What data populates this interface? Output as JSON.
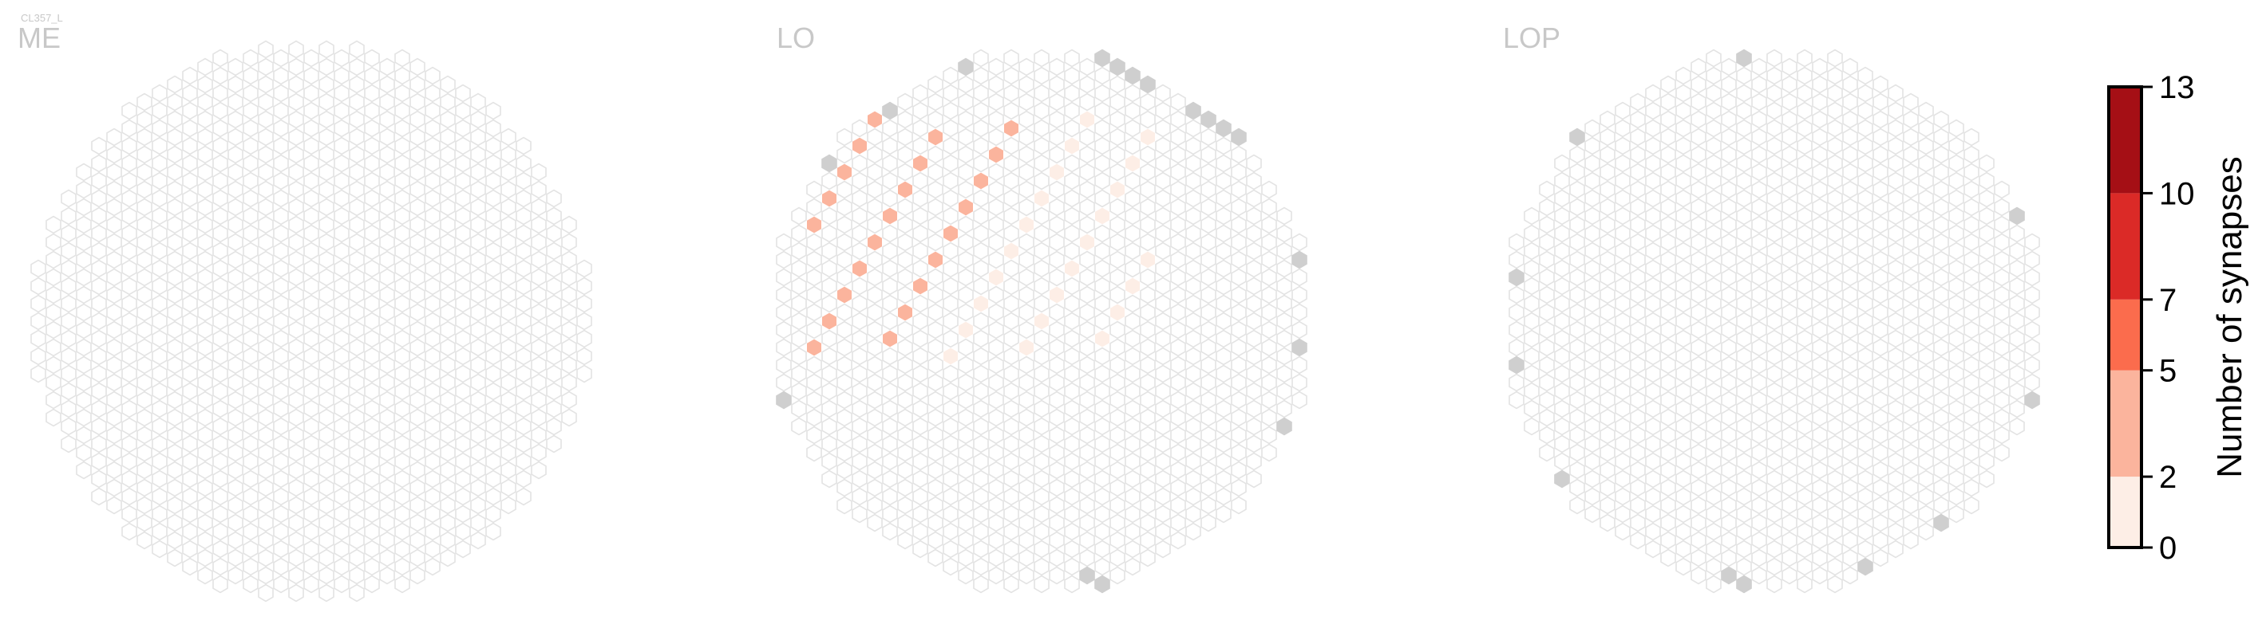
{
  "chart_data": {
    "type": "heatmap",
    "cell_type_label": "CL357_L",
    "panels": [
      {
        "title": "ME"
      },
      {
        "title": "LO"
      },
      {
        "title": "LOP"
      }
    ],
    "colorbar": {
      "label": "Number of synapses",
      "min": 0,
      "max": 13,
      "ticks": [
        "0",
        "2",
        "5",
        "7",
        "10",
        "13"
      ],
      "tick_values": [
        0,
        2,
        5,
        7,
        10,
        13
      ],
      "bin_colors": [
        "#fdeee6",
        "#fbb49d",
        "#fb6c4d",
        "#db2a27",
        "#a50f15"
      ]
    },
    "colors": {
      "empty_fill": "#ffffff",
      "empty_stroke": "#e3e3e3",
      "outside_fill": "#cfcfcf",
      "title": "#c8c8c8"
    }
  }
}
